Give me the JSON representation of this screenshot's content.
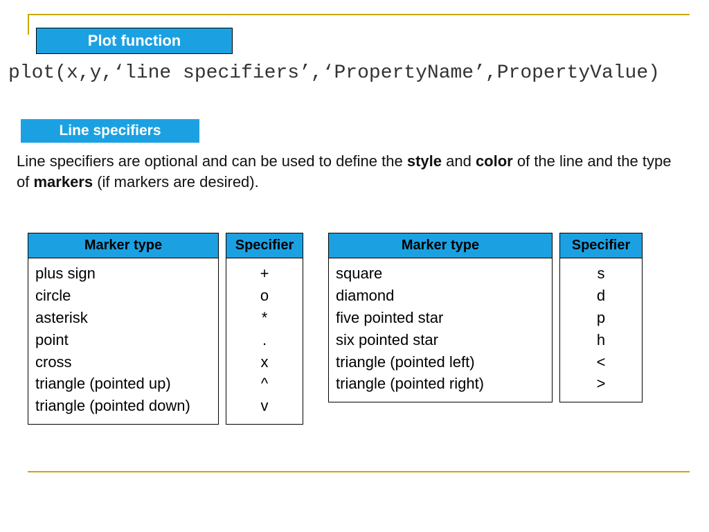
{
  "colors": {
    "accent": "#1ba1e2",
    "frame": "#c9a800",
    "text": "#111111",
    "bg": "#ffffff"
  },
  "header": {
    "title": "Plot function"
  },
  "code": "plot(x,y,‘line specifiers’,‘PropertyName’,PropertyValue)",
  "section": {
    "title": "Line specifiers",
    "desc_pre": "Line specifiers are optional and can be used to define the ",
    "desc_b1": "style",
    "desc_mid1": " and ",
    "desc_b2": "color",
    "desc_mid2": " of the line and the type of ",
    "desc_b3": "markers",
    "desc_post": " (if markers are desired)."
  },
  "tableA": {
    "col1_header": "Marker type",
    "col2_header": "Specifier",
    "rows": [
      {
        "name": "plus sign",
        "spec": "+"
      },
      {
        "name": "circle",
        "spec": "o"
      },
      {
        "name": "asterisk",
        "spec": "*"
      },
      {
        "name": "point",
        "spec": "."
      },
      {
        "name": "cross",
        "spec": "x"
      },
      {
        "name": "triangle (pointed up)",
        "spec": "^"
      },
      {
        "name": "triangle (pointed down)",
        "spec": "v"
      }
    ]
  },
  "tableB": {
    "col1_header": "Marker type",
    "col2_header": "Specifier",
    "rows": [
      {
        "name": "square",
        "spec": "s"
      },
      {
        "name": "diamond",
        "spec": "d"
      },
      {
        "name": "five pointed star",
        "spec": "p"
      },
      {
        "name": "six pointed star",
        "spec": "h"
      },
      {
        "name": "triangle (pointed left)",
        "spec": "<"
      },
      {
        "name": "triangle (pointed right)",
        "spec": ">"
      }
    ]
  }
}
